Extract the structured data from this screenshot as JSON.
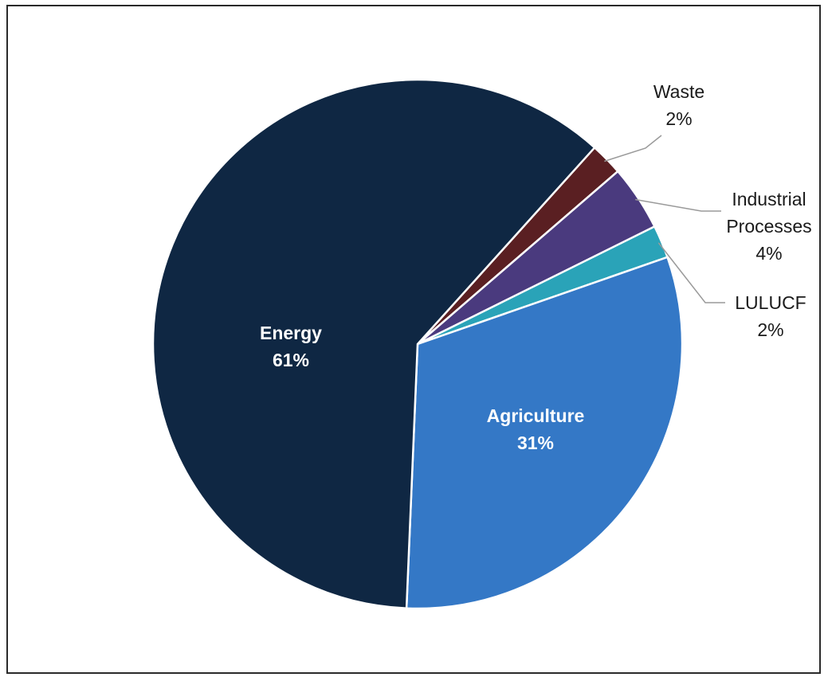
{
  "chart_data": {
    "type": "pie",
    "title": "",
    "slices": [
      {
        "label": "Energy",
        "value": 61,
        "value_label": "61%",
        "color": "#0f2743"
      },
      {
        "label": "Agriculture",
        "value": 31,
        "value_label": "31%",
        "color": "#3478c6"
      },
      {
        "label": "LULUCF",
        "value": 2,
        "value_label": "2%",
        "color": "#2aa3b8"
      },
      {
        "label": "Industrial Processes",
        "value": 4,
        "value_label": "4%",
        "color": "#4a3a7e"
      },
      {
        "label": "Waste",
        "value": 2,
        "value_label": "2%",
        "color": "#5a1f22"
      }
    ],
    "label_lines": {
      "Industrial Processes": [
        "Industrial",
        "Processes"
      ]
    },
    "legend": "none",
    "colors": {
      "slice_border": "#ffffff",
      "leader_line": "#9a9a9a",
      "frame": "#2a2a2a"
    }
  }
}
